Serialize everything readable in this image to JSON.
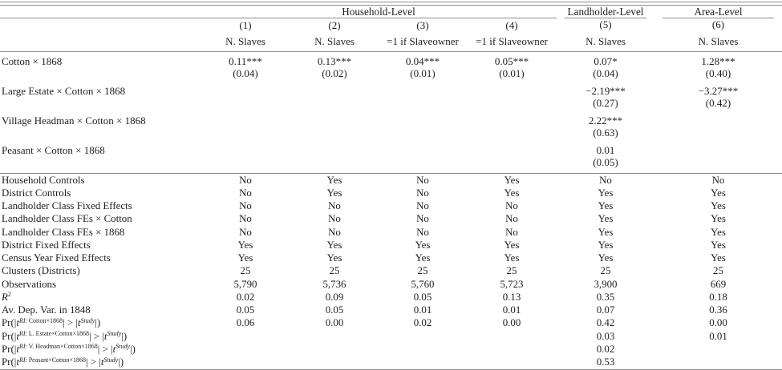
{
  "table": {
    "group_headers": [
      {
        "label": "Household-Level"
      },
      {
        "label": "Landholder-Level"
      },
      {
        "label": "Area-Level"
      }
    ],
    "column_numbers": [
      "(1)",
      "(2)",
      "(3)",
      "(4)",
      "(5)",
      "(6)"
    ],
    "dep_vars": [
      "N. Slaves",
      "N. Slaves",
      "=1 if Slaveowner",
      "=1 if Slaveowner",
      "N. Slaves",
      "N. Slaves"
    ],
    "coefficient_rows": [
      {
        "label": "Cotton × 1868",
        "estimates": [
          "0.11***",
          "0.13***",
          "0.04***",
          "0.05***",
          "0.07*",
          "1.28***"
        ],
        "std_errors": [
          "(0.04)",
          "(0.02)",
          "(0.01)",
          "(0.01)",
          "(0.04)",
          "(0.40)"
        ]
      },
      {
        "label": "Large Estate × Cotton × 1868",
        "estimates": [
          "",
          "",
          "",
          "",
          "−2.19***",
          "−3.27***"
        ],
        "std_errors": [
          "",
          "",
          "",
          "",
          "(0.27)",
          "(0.42)"
        ]
      },
      {
        "label": "Village Headman × Cotton × 1868",
        "estimates": [
          "",
          "",
          "",
          "",
          "2.22***",
          ""
        ],
        "std_errors": [
          "",
          "",
          "",
          "",
          "(0.63)",
          ""
        ]
      },
      {
        "label": "Peasant × Cotton × 1868",
        "estimates": [
          "",
          "",
          "",
          "",
          "0.01",
          ""
        ],
        "std_errors": [
          "",
          "",
          "",
          "",
          "(0.05)",
          ""
        ]
      }
    ],
    "control_rows": [
      {
        "label": "Household Controls",
        "values": [
          "No",
          "Yes",
          "No",
          "Yes",
          "No",
          "No"
        ]
      },
      {
        "label": "District Controls",
        "values": [
          "No",
          "Yes",
          "No",
          "Yes",
          "Yes",
          "Yes"
        ]
      },
      {
        "label": "Landholder Class Fixed Effects",
        "values": [
          "No",
          "No",
          "No",
          "No",
          "Yes",
          "Yes"
        ]
      },
      {
        "label": "Landholder Class FEs × Cotton",
        "values": [
          "No",
          "No",
          "No",
          "No",
          "Yes",
          "Yes"
        ]
      },
      {
        "label": "Landholder Class FEs × 1868",
        "values": [
          "No",
          "No",
          "No",
          "No",
          "Yes",
          "Yes"
        ]
      },
      {
        "label": "District Fixed Effects",
        "values": [
          "Yes",
          "Yes",
          "Yes",
          "Yes",
          "Yes",
          "Yes"
        ]
      },
      {
        "label": "Census Year Fixed Effects",
        "values": [
          "Yes",
          "Yes",
          "Yes",
          "Yes",
          "Yes",
          "Yes"
        ]
      },
      {
        "label": "Clusters (Districts)",
        "values": [
          "25",
          "25",
          "25",
          "25",
          "25",
          "25"
        ]
      },
      {
        "label": "Observations",
        "values": [
          "5,790",
          "5,736",
          "5,760",
          "5,723",
          "3,900",
          "669"
        ]
      },
      {
        "label_type": "r_squared",
        "values": [
          "0.02",
          "0.09",
          "0.05",
          "0.13",
          "0.35",
          "0.18"
        ]
      },
      {
        "label": "Av. Dep. Var. in 1848",
        "values": [
          "0.05",
          "0.05",
          "0.01",
          "0.01",
          "0.07",
          "0.36"
        ]
      },
      {
        "label_type": "pr",
        "sup_rest": ": Cotton×1868",
        "values": [
          "0.06",
          "0.00",
          "0.02",
          "0.00",
          "0.42",
          "0.00"
        ]
      },
      {
        "label_type": "pr",
        "sup_rest": ": L. Estate×Cotton×1868",
        "values": [
          "",
          "",
          "",
          "",
          "0.03",
          "0.01"
        ]
      },
      {
        "label_type": "pr",
        "sup_rest": ": V. Headman×Cotton×1868",
        "values": [
          "",
          "",
          "",
          "",
          "0.02",
          ""
        ]
      },
      {
        "label_type": "pr",
        "sup_rest": ": Peasant×Cotton×1868",
        "values": [
          "",
          "",
          "",
          "",
          "0.53",
          ""
        ]
      }
    ],
    "r_squared_label": {
      "base": "R",
      "sup": "2"
    },
    "pr_label": {
      "open": "Pr(|",
      "t": "t",
      "ri": "RI",
      "mid": "| > |",
      "study": "Study",
      "close": "|)"
    },
    "rule_color": "#8c8c8c",
    "text_color": "#1f1f1f"
  }
}
